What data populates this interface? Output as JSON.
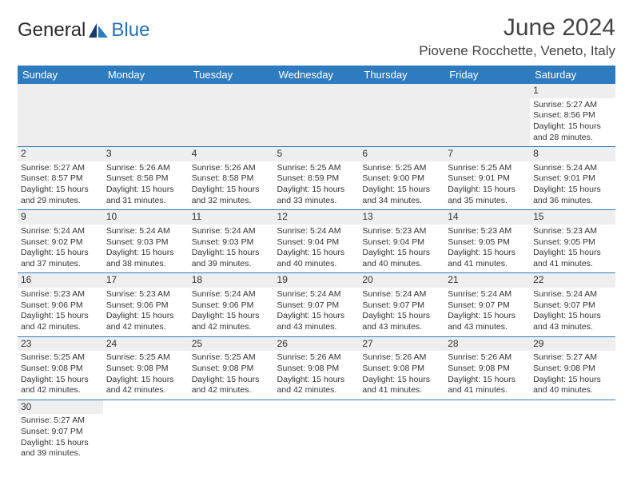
{
  "brand": {
    "word1": "General",
    "word2": "Blue"
  },
  "title": "June 2024",
  "location": "Piovene Rocchette, Veneto, Italy",
  "colors": {
    "header_bg": "#2f7bbf",
    "header_text": "#ffffff",
    "grey_row": "#eeeeee",
    "border": "#2f7bbf",
    "brand_blue": "#2570b8"
  },
  "weekdays": [
    "Sunday",
    "Monday",
    "Tuesday",
    "Wednesday",
    "Thursday",
    "Friday",
    "Saturday"
  ],
  "weeks": [
    [
      null,
      null,
      null,
      null,
      null,
      null,
      {
        "n": "1",
        "sr": "Sunrise: 5:27 AM",
        "ss": "Sunset: 8:56 PM",
        "d1": "Daylight: 15 hours",
        "d2": "and 28 minutes."
      }
    ],
    [
      {
        "n": "2",
        "sr": "Sunrise: 5:27 AM",
        "ss": "Sunset: 8:57 PM",
        "d1": "Daylight: 15 hours",
        "d2": "and 29 minutes."
      },
      {
        "n": "3",
        "sr": "Sunrise: 5:26 AM",
        "ss": "Sunset: 8:58 PM",
        "d1": "Daylight: 15 hours",
        "d2": "and 31 minutes."
      },
      {
        "n": "4",
        "sr": "Sunrise: 5:26 AM",
        "ss": "Sunset: 8:58 PM",
        "d1": "Daylight: 15 hours",
        "d2": "and 32 minutes."
      },
      {
        "n": "5",
        "sr": "Sunrise: 5:25 AM",
        "ss": "Sunset: 8:59 PM",
        "d1": "Daylight: 15 hours",
        "d2": "and 33 minutes."
      },
      {
        "n": "6",
        "sr": "Sunrise: 5:25 AM",
        "ss": "Sunset: 9:00 PM",
        "d1": "Daylight: 15 hours",
        "d2": "and 34 minutes."
      },
      {
        "n": "7",
        "sr": "Sunrise: 5:25 AM",
        "ss": "Sunset: 9:01 PM",
        "d1": "Daylight: 15 hours",
        "d2": "and 35 minutes."
      },
      {
        "n": "8",
        "sr": "Sunrise: 5:24 AM",
        "ss": "Sunset: 9:01 PM",
        "d1": "Daylight: 15 hours",
        "d2": "and 36 minutes."
      }
    ],
    [
      {
        "n": "9",
        "sr": "Sunrise: 5:24 AM",
        "ss": "Sunset: 9:02 PM",
        "d1": "Daylight: 15 hours",
        "d2": "and 37 minutes."
      },
      {
        "n": "10",
        "sr": "Sunrise: 5:24 AM",
        "ss": "Sunset: 9:03 PM",
        "d1": "Daylight: 15 hours",
        "d2": "and 38 minutes."
      },
      {
        "n": "11",
        "sr": "Sunrise: 5:24 AM",
        "ss": "Sunset: 9:03 PM",
        "d1": "Daylight: 15 hours",
        "d2": "and 39 minutes."
      },
      {
        "n": "12",
        "sr": "Sunrise: 5:24 AM",
        "ss": "Sunset: 9:04 PM",
        "d1": "Daylight: 15 hours",
        "d2": "and 40 minutes."
      },
      {
        "n": "13",
        "sr": "Sunrise: 5:23 AM",
        "ss": "Sunset: 9:04 PM",
        "d1": "Daylight: 15 hours",
        "d2": "and 40 minutes."
      },
      {
        "n": "14",
        "sr": "Sunrise: 5:23 AM",
        "ss": "Sunset: 9:05 PM",
        "d1": "Daylight: 15 hours",
        "d2": "and 41 minutes."
      },
      {
        "n": "15",
        "sr": "Sunrise: 5:23 AM",
        "ss": "Sunset: 9:05 PM",
        "d1": "Daylight: 15 hours",
        "d2": "and 41 minutes."
      }
    ],
    [
      {
        "n": "16",
        "sr": "Sunrise: 5:23 AM",
        "ss": "Sunset: 9:06 PM",
        "d1": "Daylight: 15 hours",
        "d2": "and 42 minutes."
      },
      {
        "n": "17",
        "sr": "Sunrise: 5:23 AM",
        "ss": "Sunset: 9:06 PM",
        "d1": "Daylight: 15 hours",
        "d2": "and 42 minutes."
      },
      {
        "n": "18",
        "sr": "Sunrise: 5:24 AM",
        "ss": "Sunset: 9:06 PM",
        "d1": "Daylight: 15 hours",
        "d2": "and 42 minutes."
      },
      {
        "n": "19",
        "sr": "Sunrise: 5:24 AM",
        "ss": "Sunset: 9:07 PM",
        "d1": "Daylight: 15 hours",
        "d2": "and 43 minutes."
      },
      {
        "n": "20",
        "sr": "Sunrise: 5:24 AM",
        "ss": "Sunset: 9:07 PM",
        "d1": "Daylight: 15 hours",
        "d2": "and 43 minutes."
      },
      {
        "n": "21",
        "sr": "Sunrise: 5:24 AM",
        "ss": "Sunset: 9:07 PM",
        "d1": "Daylight: 15 hours",
        "d2": "and 43 minutes."
      },
      {
        "n": "22",
        "sr": "Sunrise: 5:24 AM",
        "ss": "Sunset: 9:07 PM",
        "d1": "Daylight: 15 hours",
        "d2": "and 43 minutes."
      }
    ],
    [
      {
        "n": "23",
        "sr": "Sunrise: 5:25 AM",
        "ss": "Sunset: 9:08 PM",
        "d1": "Daylight: 15 hours",
        "d2": "and 42 minutes."
      },
      {
        "n": "24",
        "sr": "Sunrise: 5:25 AM",
        "ss": "Sunset: 9:08 PM",
        "d1": "Daylight: 15 hours",
        "d2": "and 42 minutes."
      },
      {
        "n": "25",
        "sr": "Sunrise: 5:25 AM",
        "ss": "Sunset: 9:08 PM",
        "d1": "Daylight: 15 hours",
        "d2": "and 42 minutes."
      },
      {
        "n": "26",
        "sr": "Sunrise: 5:26 AM",
        "ss": "Sunset: 9:08 PM",
        "d1": "Daylight: 15 hours",
        "d2": "and 42 minutes."
      },
      {
        "n": "27",
        "sr": "Sunrise: 5:26 AM",
        "ss": "Sunset: 9:08 PM",
        "d1": "Daylight: 15 hours",
        "d2": "and 41 minutes."
      },
      {
        "n": "28",
        "sr": "Sunrise: 5:26 AM",
        "ss": "Sunset: 9:08 PM",
        "d1": "Daylight: 15 hours",
        "d2": "and 41 minutes."
      },
      {
        "n": "29",
        "sr": "Sunrise: 5:27 AM",
        "ss": "Sunset: 9:08 PM",
        "d1": "Daylight: 15 hours",
        "d2": "and 40 minutes."
      }
    ],
    [
      {
        "n": "30",
        "sr": "Sunrise: 5:27 AM",
        "ss": "Sunset: 9:07 PM",
        "d1": "Daylight: 15 hours",
        "d2": "and 39 minutes."
      },
      null,
      null,
      null,
      null,
      null,
      null
    ]
  ]
}
